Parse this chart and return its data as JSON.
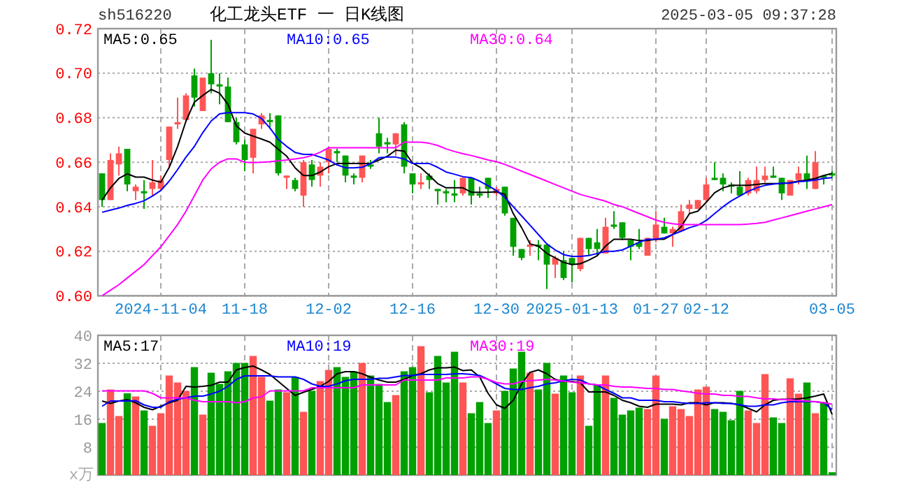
{
  "chart_data": [
    {
      "type": "candlestick",
      "title": "化工龙头ETF 一 日K线图",
      "subtitle": "sh516220",
      "annotations": [
        "2025-03-05 09:37:28"
      ],
      "categories": [
        null,
        null,
        null,
        null,
        null,
        null,
        null,
        "2024-11-04",
        null,
        null,
        null,
        null,
        null,
        null,
        null,
        null,
        null,
        "11-18",
        null,
        null,
        null,
        null,
        null,
        null,
        null,
        null,
        null,
        "12-02",
        null,
        null,
        null,
        null,
        null,
        null,
        null,
        null,
        null,
        "12-16",
        null,
        null,
        null,
        null,
        null,
        null,
        null,
        null,
        null,
        "12-30",
        null,
        null,
        null,
        null,
        null,
        null,
        null,
        null,
        "2025-01-13",
        null,
        null,
        null,
        null,
        null,
        null,
        null,
        null,
        null,
        "01-27",
        null,
        null,
        null,
        null,
        null,
        "02-12",
        null,
        null,
        null,
        null,
        null,
        null,
        null,
        null,
        null,
        null,
        null,
        null,
        null,
        null,
        "03-05"
      ],
      "ohlc": [
        [
          0.655,
          0.655,
          0.64,
          0.643
        ],
        [
          0.643,
          0.664,
          0.643,
          0.661
        ],
        [
          0.659,
          0.667,
          0.654,
          0.664
        ],
        [
          0.666,
          0.666,
          0.647,
          0.65
        ],
        [
          0.647,
          0.65,
          0.643,
          0.649
        ],
        [
          0.647,
          0.652,
          0.639,
          0.646
        ],
        [
          0.648,
          0.661,
          0.645,
          0.651
        ],
        [
          0.648,
          0.654,
          0.647,
          0.652
        ],
        [
          0.661,
          0.676,
          0.658,
          0.676
        ],
        [
          0.677,
          0.689,
          0.675,
          0.678
        ],
        [
          0.679,
          0.691,
          0.678,
          0.69
        ],
        [
          0.699,
          0.702,
          0.685,
          0.689
        ],
        [
          0.683,
          0.698,
          0.683,
          0.698
        ],
        [
          0.7,
          0.715,
          0.691,
          0.695
        ],
        [
          0.695,
          0.7,
          0.686,
          0.694
        ],
        [
          0.694,
          0.698,
          0.678,
          0.678
        ],
        [
          0.678,
          0.68,
          0.668,
          0.669
        ],
        [
          0.668,
          0.67,
          0.656,
          0.661
        ],
        [
          0.662,
          0.675,
          0.655,
          0.675
        ],
        [
          0.677,
          0.682,
          0.675,
          0.681
        ],
        [
          0.679,
          0.682,
          0.675,
          0.678
        ],
        [
          0.681,
          0.681,
          0.654,
          0.655
        ],
        [
          0.653,
          0.654,
          0.648,
          0.654
        ],
        [
          0.652,
          0.653,
          0.647,
          0.648
        ],
        [
          0.645,
          0.661,
          0.64,
          0.66
        ],
        [
          0.659,
          0.661,
          0.649,
          0.652
        ],
        [
          0.654,
          0.66,
          0.649,
          0.658
        ],
        [
          0.66,
          0.667,
          0.655,
          0.666
        ],
        [
          0.665,
          0.666,
          0.66,
          0.664
        ],
        [
          0.663,
          0.663,
          0.651,
          0.654
        ],
        [
          0.654,
          0.655,
          0.65,
          0.653
        ],
        [
          0.653,
          0.663,
          0.651,
          0.663
        ],
        [
          0.659,
          0.661,
          0.657,
          0.658
        ],
        [
          0.673,
          0.68,
          0.664,
          0.667
        ],
        [
          0.669,
          0.671,
          0.664,
          0.668
        ],
        [
          0.668,
          0.673,
          0.663,
          0.673
        ],
        [
          0.677,
          0.678,
          0.655,
          0.658
        ],
        [
          0.655,
          0.655,
          0.646,
          0.65
        ],
        [
          0.65,
          0.655,
          0.648,
          0.651
        ],
        [
          0.654,
          0.655,
          0.648,
          0.652
        ],
        [
          0.648,
          0.648,
          0.641,
          0.647
        ],
        [
          0.647,
          0.648,
          0.642,
          0.646
        ],
        [
          0.646,
          0.652,
          0.642,
          0.645
        ],
        [
          0.646,
          0.653,
          0.645,
          0.653
        ],
        [
          0.653,
          0.653,
          0.641,
          0.645
        ],
        [
          0.646,
          0.649,
          0.644,
          0.645
        ],
        [
          0.653,
          0.653,
          0.644,
          0.648
        ],
        [
          0.646,
          0.649,
          0.645,
          0.648
        ],
        [
          0.649,
          0.649,
          0.636,
          0.637
        ],
        [
          0.635,
          0.635,
          0.618,
          0.622
        ],
        [
          0.621,
          0.621,
          0.616,
          0.617
        ],
        [
          0.622,
          0.625,
          0.618,
          0.623
        ],
        [
          0.623,
          0.625,
          0.616,
          0.622
        ],
        [
          0.623,
          0.623,
          0.603,
          0.614
        ],
        [
          0.614,
          0.618,
          0.608,
          0.617
        ],
        [
          0.616,
          0.62,
          0.607,
          0.608
        ],
        [
          0.617,
          0.617,
          0.606,
          0.614
        ],
        [
          0.612,
          0.626,
          0.611,
          0.626
        ],
        [
          0.626,
          0.626,
          0.618,
          0.621
        ],
        [
          0.624,
          0.63,
          0.618,
          0.621
        ],
        [
          0.619,
          0.635,
          0.619,
          0.631
        ],
        [
          0.632,
          0.638,
          0.63,
          0.631
        ],
        [
          0.633,
          0.633,
          0.625,
          0.626
        ],
        [
          0.625,
          0.625,
          0.616,
          0.622
        ],
        [
          0.624,
          0.63,
          0.621,
          0.622
        ],
        [
          0.618,
          0.626,
          0.618,
          0.626
        ],
        [
          0.625,
          0.638,
          0.624,
          0.632
        ],
        [
          0.631,
          0.635,
          0.628,
          0.628
        ],
        [
          0.628,
          0.631,
          0.622,
          0.63
        ],
        [
          0.629,
          0.641,
          0.629,
          0.638
        ],
        [
          0.639,
          0.643,
          0.637,
          0.641
        ],
        [
          0.639,
          0.643,
          0.639,
          0.643
        ],
        [
          0.643,
          0.653,
          0.642,
          0.65
        ],
        [
          0.653,
          0.66,
          0.652,
          0.652
        ],
        [
          0.653,
          0.655,
          0.647,
          0.65
        ],
        [
          0.65,
          0.651,
          0.646,
          0.649
        ],
        [
          0.649,
          0.656,
          0.645,
          0.645
        ],
        [
          0.646,
          0.653,
          0.645,
          0.652
        ],
        [
          0.647,
          0.658,
          0.646,
          0.652
        ],
        [
          0.652,
          0.658,
          0.651,
          0.654
        ],
        [
          0.654,
          0.658,
          0.653,
          0.653
        ],
        [
          0.653,
          0.653,
          0.643,
          0.646
        ],
        [
          0.645,
          0.652,
          0.645,
          0.652
        ],
        [
          0.652,
          0.658,
          0.65,
          0.655
        ],
        [
          0.655,
          0.663,
          0.648,
          0.652
        ],
        [
          0.648,
          0.665,
          0.648,
          0.66
        ],
        [
          0.654,
          0.654,
          0.65,
          0.653
        ],
        [
          0.655,
          0.656,
          0.653,
          0.654
        ]
      ],
      "colors": [
        "#00a000",
        "#ff5555",
        "#ff5555",
        "#00a000",
        "#ff5555",
        "#00a000",
        "#ff5555",
        "#ff5555",
        "#ff5555",
        "#ff5555",
        "#ff5555",
        "#00a000",
        "#ff5555",
        "#00a000",
        "#00a000",
        "#00a000",
        "#00a000",
        "#00a000",
        "#ff5555",
        "#ff5555",
        "#00a000",
        "#00a000",
        "#ff5555",
        "#00a000",
        "#ff5555",
        "#00a000",
        "#ff5555",
        "#ff5555",
        "#00a000",
        "#00a000",
        "#00a000",
        "#ff5555",
        "#00a000",
        "#00a000",
        "#00a000",
        "#ff5555",
        "#00a000",
        "#00a000",
        "#ff5555",
        "#00a000",
        "#00a000",
        "#00a000",
        "#00a000",
        "#ff5555",
        "#00a000",
        "#00a000",
        "#00a000",
        "#ff5555",
        "#00a000",
        "#00a000",
        "#00a000",
        "#ff5555",
        "#00a000",
        "#00a000",
        "#ff5555",
        "#00a000",
        "#00a000",
        "#ff5555",
        "#00a000",
        "#00a000",
        "#ff5555",
        "#00a000",
        "#00a000",
        "#00a000",
        "#00a000",
        "#ff5555",
        "#ff5555",
        "#00a000",
        "#ff5555",
        "#ff5555",
        "#ff5555",
        "#ff5555",
        "#ff5555",
        "#00a000",
        "#00a000",
        "#00a000",
        "#00a000",
        "#ff5555",
        "#ff5555",
        "#ff5555",
        "#00a000",
        "#00a000",
        "#ff5555",
        "#ff5555",
        "#00a000",
        "#ff5555",
        "#00a000",
        "#00a000"
      ],
      "series": [
        {
          "type": "line",
          "name": "MA5:0.65",
          "color": "#000000",
          "values": [
            0.643,
            0.6485,
            0.6527,
            0.6548,
            0.6533,
            0.6533,
            0.652,
            0.651,
            0.6577,
            0.6671,
            0.6785,
            0.687,
            0.69,
            0.6927,
            0.691,
            0.686,
            0.6763,
            0.6731,
            0.6717,
            0.6704,
            0.669,
            0.6658,
            0.6627,
            0.6575,
            0.654,
            0.654,
            0.6556,
            0.658,
            0.6594,
            0.6594,
            0.6594,
            0.6594,
            0.6594,
            0.661,
            0.6627,
            0.6654,
            0.665,
            0.6596,
            0.6575,
            0.654,
            0.6504,
            0.6485,
            0.6485,
            0.6485,
            0.6465,
            0.6465,
            0.6465,
            0.6467,
            0.6456,
            0.6369,
            0.6306,
            0.6233,
            0.6223,
            0.619,
            0.617,
            0.615,
            0.614,
            0.6144,
            0.616,
            0.618,
            0.6223,
            0.6254,
            0.6254,
            0.6254,
            0.6248,
            0.6248,
            0.6254,
            0.6254,
            0.6275,
            0.631,
            0.6369,
            0.638,
            0.642,
            0.6463,
            0.6485,
            0.6496,
            0.6496,
            0.6496,
            0.65,
            0.6504,
            0.6504,
            0.6504,
            0.6508,
            0.6515,
            0.652,
            0.6527,
            0.654,
            0.655
          ]
        },
        {
          "type": "line",
          "name": "MA10:0.65",
          "color": "#0000ff",
          "values": [
            0.6375,
            0.6385,
            0.6394,
            0.6406,
            0.6415,
            0.6427,
            0.6448,
            0.6473,
            0.6515,
            0.6567,
            0.6623,
            0.6671,
            0.6733,
            0.6785,
            0.6817,
            0.6823,
            0.6823,
            0.6823,
            0.6817,
            0.6796,
            0.6754,
            0.6702,
            0.6671,
            0.6644,
            0.6635,
            0.6635,
            0.6623,
            0.661,
            0.6588,
            0.6575,
            0.6575,
            0.6577,
            0.6594,
            0.662,
            0.6623,
            0.6623,
            0.6615,
            0.6594,
            0.6594,
            0.6594,
            0.6577,
            0.6556,
            0.6546,
            0.6535,
            0.6531,
            0.6515,
            0.6494,
            0.6473,
            0.6442,
            0.64,
            0.6359,
            0.6317,
            0.6275,
            0.6233,
            0.6206,
            0.6185,
            0.6177,
            0.6177,
            0.6181,
            0.619,
            0.62,
            0.62,
            0.6206,
            0.6223,
            0.624,
            0.6254,
            0.6254,
            0.626,
            0.6275,
            0.629,
            0.6306,
            0.6317,
            0.6338,
            0.6369,
            0.64,
            0.6427,
            0.6448,
            0.6469,
            0.6485,
            0.6496,
            0.6502,
            0.6506,
            0.6506,
            0.6513,
            0.6515,
            0.652,
            0.6527,
            0.6531
          ]
        },
        {
          "type": "line",
          "name": "MA30:0.64",
          "color": "#ff00ff",
          "values": [
            0.6,
            0.6025,
            0.605,
            0.608,
            0.611,
            0.614,
            0.618,
            0.622,
            0.627,
            0.632,
            0.638,
            0.645,
            0.652,
            0.657,
            0.66,
            0.6615,
            0.6615,
            0.66,
            0.6598,
            0.66,
            0.6602,
            0.6606,
            0.661,
            0.6615,
            0.662,
            0.663,
            0.6645,
            0.6665,
            0.6665,
            0.6665,
            0.6665,
            0.6665,
            0.6665,
            0.6665,
            0.6665,
            0.6665,
            0.669,
            0.669,
            0.669,
            0.6685,
            0.6675,
            0.666,
            0.6648,
            0.6638,
            0.663,
            0.662,
            0.661,
            0.6602,
            0.659,
            0.6575,
            0.656,
            0.6545,
            0.653,
            0.6515,
            0.65,
            0.6485,
            0.647,
            0.6455,
            0.6445,
            0.6435,
            0.6425,
            0.641,
            0.64,
            0.6385,
            0.637,
            0.6355,
            0.634,
            0.633,
            0.6324,
            0.632,
            0.632,
            0.632,
            0.632,
            0.632,
            0.632,
            0.632,
            0.632,
            0.6322,
            0.6325,
            0.633,
            0.634,
            0.635,
            0.636,
            0.637,
            0.638,
            0.639,
            0.64,
            0.641
          ]
        }
      ],
      "ylim": [
        0.6,
        0.72
      ],
      "yticks": [
        {
          "value": 0.6,
          "label": "0.60"
        },
        {
          "value": 0.62,
          "label": "0.62"
        },
        {
          "value": 0.64,
          "label": "0.64"
        },
        {
          "value": 0.66,
          "label": "0.66"
        },
        {
          "value": 0.68,
          "label": "0.68"
        },
        {
          "value": 0.7,
          "label": "0.70"
        },
        {
          "value": 0.72,
          "label": "0.72"
        }
      ],
      "grid": true,
      "legend": "top"
    },
    {
      "type": "bar",
      "ylabel": "x万",
      "tick_labels": "y",
      "categories": [
        null,
        null,
        null,
        null,
        null,
        null,
        null,
        null,
        null,
        null,
        null,
        null,
        null,
        null,
        null,
        null,
        null,
        null,
        null,
        null,
        null,
        null,
        null,
        null,
        null,
        null,
        null,
        null,
        null,
        null,
        null,
        null,
        null,
        null,
        null,
        null,
        null,
        null,
        null,
        null,
        null,
        null,
        null,
        null,
        null,
        null,
        null,
        null,
        null,
        null,
        null,
        null,
        null,
        null,
        null,
        null,
        null,
        null,
        null,
        null,
        null,
        null,
        null,
        null,
        null,
        null,
        null,
        null,
        null,
        null,
        null,
        null,
        null,
        null,
        null,
        null,
        null,
        null,
        null,
        null,
        null,
        null,
        null,
        null,
        null,
        null,
        null,
        null
      ],
      "values": [
        14.9,
        24.5,
        16.9,
        23.4,
        22.5,
        18.5,
        14.1,
        17.7,
        28.5,
        26.5,
        24.1,
        30.9,
        17.3,
        29.3,
        26.1,
        29.7,
        32.1,
        32.1,
        34.1,
        28.1,
        21.3,
        24.5,
        23.7,
        28.1,
        18.1,
        24.1,
        26.9,
        30.1,
        30.9,
        28.1,
        29.7,
        32.1,
        28.5,
        26.1,
        20.9,
        22.9,
        29.7,
        30.9,
        36.9,
        23.7,
        34.1,
        26.5,
        35.3,
        26.5,
        17.7,
        20.9,
        14.9,
        18.5,
        24.1,
        30.5,
        35.3,
        29.3,
        24.5,
        32.1,
        23.3,
        28.5,
        23.7,
        28.5,
        14.1,
        25.7,
        28.5,
        22.1,
        17.3,
        18.5,
        19.3,
        18.9,
        28.5,
        16.1,
        19.7,
        18.9,
        16.9,
        24.5,
        25.3,
        18.9,
        18.1,
        15.7,
        24.1,
        18.5,
        14.9,
        28.9,
        16.5,
        14.9,
        27.7,
        23.3,
        26.5,
        17.7,
        20.9,
        0.8
      ],
      "colors": [
        "#00a000",
        "#ff5555",
        "#ff5555",
        "#00a000",
        "#ff5555",
        "#00a000",
        "#ff5555",
        "#ff5555",
        "#ff5555",
        "#ff5555",
        "#ff5555",
        "#00a000",
        "#ff5555",
        "#00a000",
        "#00a000",
        "#00a000",
        "#00a000",
        "#00a000",
        "#ff5555",
        "#ff5555",
        "#00a000",
        "#00a000",
        "#ff5555",
        "#00a000",
        "#ff5555",
        "#00a000",
        "#ff5555",
        "#ff5555",
        "#00a000",
        "#00a000",
        "#00a000",
        "#ff5555",
        "#00a000",
        "#00a000",
        "#00a000",
        "#ff5555",
        "#00a000",
        "#00a000",
        "#ff5555",
        "#00a000",
        "#00a000",
        "#00a000",
        "#00a000",
        "#ff5555",
        "#00a000",
        "#00a000",
        "#00a000",
        "#ff5555",
        "#00a000",
        "#00a000",
        "#00a000",
        "#ff5555",
        "#00a000",
        "#00a000",
        "#ff5555",
        "#00a000",
        "#00a000",
        "#ff5555",
        "#00a000",
        "#00a000",
        "#ff5555",
        "#00a000",
        "#00a000",
        "#00a000",
        "#00a000",
        "#ff5555",
        "#ff5555",
        "#00a000",
        "#ff5555",
        "#ff5555",
        "#ff5555",
        "#ff5555",
        "#ff5555",
        "#00a000",
        "#00a000",
        "#00a000",
        "#00a000",
        "#ff5555",
        "#ff5555",
        "#ff5555",
        "#00a000",
        "#00a000",
        "#ff5555",
        "#ff5555",
        "#00a000",
        "#ff5555",
        "#00a000",
        "#00a000"
      ],
      "series": [
        {
          "type": "line",
          "name": "MA5:17",
          "color": "#000000",
          "values": [
            21.2,
            20.5,
            21.2,
            21.6,
            20.7,
            19.4,
            18.7,
            19.7,
            20.7,
            21.4,
            25.4,
            25.2,
            25.4,
            25.7,
            26.6,
            26.6,
            30.1,
            30.8,
            31.2,
            30.1,
            28.8,
            26.8,
            24.8,
            22.8,
            23.7,
            24.5,
            25.4,
            26.8,
            29.0,
            29.6,
            29.6,
            29.0,
            28.0,
            27.2,
            26.6,
            26.6,
            27.4,
            28.5,
            29.0,
            30.1,
            30.7,
            30.7,
            30.9,
            29.9,
            30.1,
            28.1,
            23.4,
            20.1,
            19.1,
            21.4,
            26.1,
            29.4,
            30.1,
            29.0,
            27.4,
            26.8,
            26.8,
            26.4,
            23.8,
            23.8,
            23.8,
            22.8,
            21.4,
            20.7,
            19.7,
            19.4,
            20.3,
            20.3,
            20.3,
            20.1,
            20.7,
            20.7,
            20.1,
            20.7,
            20.7,
            20.5,
            20.1,
            19.1,
            18.1,
            20.1,
            21.4,
            21.7,
            21.7,
            21.8,
            22.1,
            22.6,
            23.2,
            17.4
          ]
        },
        {
          "type": "line",
          "name": "MA10:19",
          "color": "#0000ff",
          "values": [
            19.7,
            21.2,
            21.2,
            21.2,
            21.3,
            20.1,
            19.4,
            19.4,
            21.0,
            21.7,
            22.1,
            22.6,
            22.6,
            23.2,
            24.0,
            25.4,
            27.4,
            28.4,
            28.4,
            28.4,
            28.4,
            28.1,
            28.1,
            28.1,
            27.4,
            26.1,
            25.4,
            25.4,
            26.1,
            27.0,
            27.4,
            27.4,
            27.4,
            27.7,
            27.7,
            28.1,
            28.5,
            28.5,
            28.8,
            28.8,
            28.8,
            28.8,
            29.0,
            29.0,
            28.8,
            28.5,
            27.4,
            26.1,
            24.8,
            24.5,
            24.5,
            25.0,
            25.4,
            26.1,
            26.4,
            27.0,
            27.4,
            27.2,
            26.1,
            25.8,
            24.5,
            23.4,
            22.1,
            22.1,
            21.4,
            21.4,
            21.4,
            21.0,
            21.0,
            20.7,
            20.5,
            20.5,
            20.7,
            20.7,
            20.5,
            20.5,
            20.1,
            19.7,
            19.7,
            20.1,
            20.1,
            20.7,
            21.0,
            21.0,
            21.0,
            21.0,
            20.7,
            18.7
          ]
        },
        {
          "type": "line",
          "name": "MA30:19",
          "color": "#ff00ff",
          "values": [
            24.1,
            24.1,
            24.1,
            24.1,
            24.1,
            24.1,
            23.4,
            22.1,
            22.1,
            22.1,
            22.1,
            21.4,
            21.0,
            21.0,
            21.0,
            21.0,
            20.7,
            21.0,
            22.1,
            22.4,
            24.1,
            24.1,
            24.1,
            24.1,
            24.1,
            25.0,
            25.0,
            25.0,
            25.0,
            25.0,
            25.0,
            25.8,
            25.8,
            25.8,
            25.8,
            25.8,
            27.2,
            27.2,
            27.2,
            27.2,
            27.2,
            27.8,
            27.8,
            27.8,
            28.1,
            28.1,
            27.4,
            26.5,
            26.1,
            26.1,
            26.8,
            27.0,
            27.2,
            27.4,
            27.2,
            26.9,
            26.6,
            26.4,
            26.1,
            25.8,
            25.8,
            25.4,
            25.2,
            25.2,
            25.0,
            24.8,
            24.8,
            24.5,
            24.5,
            24.1,
            23.8,
            23.4,
            23.2,
            23.2,
            22.8,
            22.8,
            22.5,
            22.5,
            22.1,
            21.8,
            21.8,
            21.6,
            21.6,
            21.3,
            21.2,
            21.0,
            20.7,
            20.3
          ]
        }
      ],
      "ylim": [
        0,
        40
      ],
      "yticks": [
        8,
        16,
        24,
        32,
        40
      ],
      "grid": true,
      "legend": "top"
    }
  ]
}
